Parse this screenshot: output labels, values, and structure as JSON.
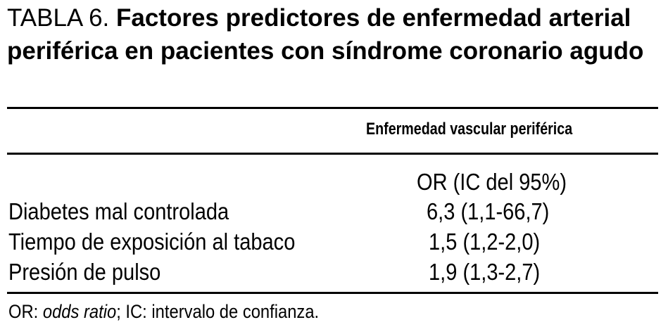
{
  "table": {
    "title_label": "TABLA 6.",
    "title_text": "Factores predictores de enfermedad arterial periférica en pacientes con síndrome coronario agudo",
    "column_header": "Enfermedad vascular periférica",
    "subheader": "OR (IC del 95%)",
    "rows": [
      {
        "label": "Diabetes mal controlada",
        "value": "6,3 (1,1-66,7)"
      },
      {
        "label": "Tiempo de exposición al tabaco",
        "value": "1,5 (1,2-2,0)"
      },
      {
        "label": "Presión de pulso",
        "value": "1,9 (1,3-2,7)"
      }
    ],
    "footnote": {
      "or_abbr": "OR:",
      "or_text": "odds ratio",
      "rest": "; IC: intervalo de confianza."
    }
  }
}
